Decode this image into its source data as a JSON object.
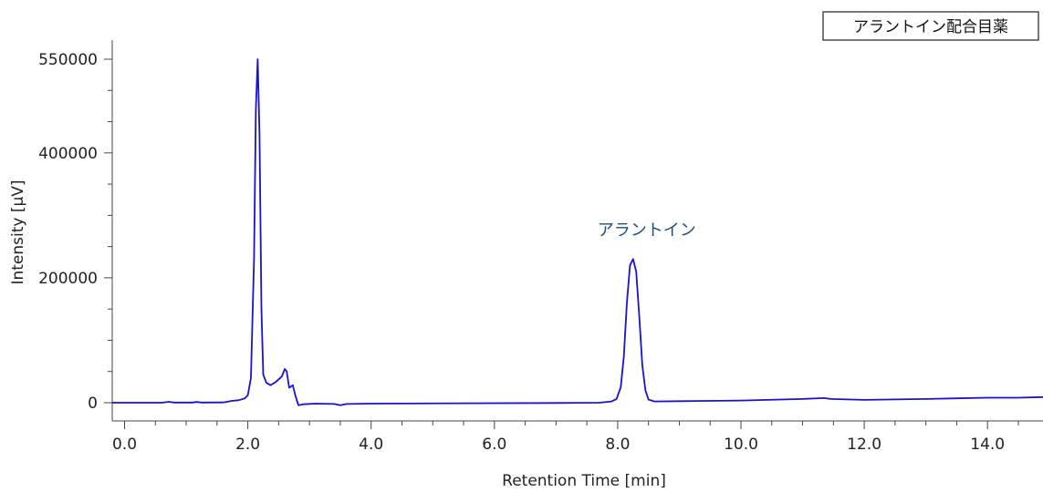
{
  "chart_data": {
    "type": "line",
    "title": "",
    "sample_label": "アラントイン配合目薬",
    "xlabel": "Retention Time [min]",
    "ylabel": "Intensity [µV]",
    "xlim": [
      -0.2,
      14.9
    ],
    "ylim": [
      -30000,
      552000
    ],
    "x_ticks": [
      "0.0",
      "2.0",
      "4.0",
      "6.0",
      "8.0",
      "10.0",
      "12.0",
      "14.0"
    ],
    "x_tick_values": [
      0,
      2,
      4,
      6,
      8,
      10,
      12,
      14
    ],
    "y_ticks": [
      "0",
      "200000",
      "400000",
      "550000"
    ],
    "y_tick_values": [
      0,
      200000,
      400000,
      550000
    ],
    "grid": false,
    "line_color": "#1a10d8",
    "annotation_color": "#1f4e79",
    "annotations": [
      {
        "text": "アラントイン",
        "x": 8.25,
        "y": 268000
      }
    ],
    "series": [
      {
        "points": [
          [
            -0.2,
            0
          ],
          [
            0.6,
            0
          ],
          [
            0.72,
            1500
          ],
          [
            0.8,
            300
          ],
          [
            1.1,
            300
          ],
          [
            1.17,
            1200
          ],
          [
            1.25,
            300
          ],
          [
            1.6,
            500
          ],
          [
            1.75,
            3000
          ],
          [
            1.85,
            4000
          ],
          [
            1.95,
            7000
          ],
          [
            2.0,
            12000
          ],
          [
            2.05,
            40000
          ],
          [
            2.1,
            230000
          ],
          [
            2.13,
            470000
          ],
          [
            2.16,
            550000
          ],
          [
            2.19,
            430000
          ],
          [
            2.22,
            150000
          ],
          [
            2.25,
            45000
          ],
          [
            2.3,
            32000
          ],
          [
            2.37,
            28000
          ],
          [
            2.45,
            33000
          ],
          [
            2.55,
            42000
          ],
          [
            2.6,
            54000
          ],
          [
            2.63,
            50000
          ],
          [
            2.67,
            24000
          ],
          [
            2.7,
            26000
          ],
          [
            2.73,
            28000
          ],
          [
            2.77,
            12000
          ],
          [
            2.82,
            -4000
          ],
          [
            2.9,
            -2500
          ],
          [
            3.1,
            -1500
          ],
          [
            3.4,
            -2000
          ],
          [
            3.5,
            -4000
          ],
          [
            3.6,
            -2000
          ],
          [
            4.0,
            -1500
          ],
          [
            7.0,
            -500
          ],
          [
            7.7,
            0
          ],
          [
            7.9,
            2000
          ],
          [
            7.98,
            6000
          ],
          [
            8.05,
            25000
          ],
          [
            8.1,
            75000
          ],
          [
            8.15,
            160000
          ],
          [
            8.2,
            220000
          ],
          [
            8.25,
            230000
          ],
          [
            8.3,
            210000
          ],
          [
            8.35,
            140000
          ],
          [
            8.4,
            60000
          ],
          [
            8.45,
            20000
          ],
          [
            8.5,
            5000
          ],
          [
            8.6,
            2000
          ],
          [
            9.0,
            2500
          ],
          [
            10.0,
            3500
          ],
          [
            11.0,
            6000
          ],
          [
            11.35,
            7500
          ],
          [
            11.45,
            6000
          ],
          [
            12.0,
            4500
          ],
          [
            13.0,
            6000
          ],
          [
            13.5,
            7000
          ],
          [
            14.0,
            8000
          ],
          [
            14.5,
            8000
          ],
          [
            14.9,
            9000
          ]
        ]
      }
    ]
  }
}
